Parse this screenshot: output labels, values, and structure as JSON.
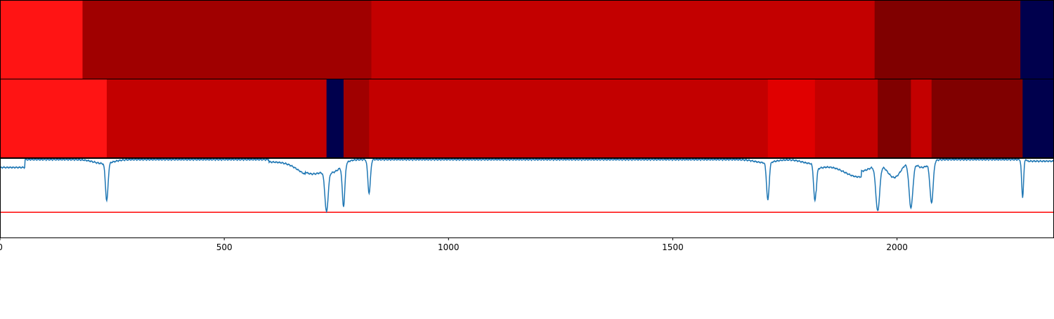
{
  "chart_data": {
    "type": "heatmap",
    "title": "",
    "xlabel": "",
    "ylabel": "",
    "xlim": [
      0,
      2350
    ],
    "x_ticks": [
      0,
      500,
      1000,
      1500,
      2000
    ],
    "x_tick_labels": [
      "0",
      "500",
      "1000",
      "1500",
      "2000"
    ],
    "grid": false,
    "segment_rows": [
      {
        "segments": [
          {
            "start": 0,
            "end": 184,
            "color": "#ff1414"
          },
          {
            "start": 184,
            "end": 828,
            "color": "#a00000"
          },
          {
            "start": 828,
            "end": 1950,
            "color": "#c30000"
          },
          {
            "start": 1950,
            "end": 2275,
            "color": "#800000"
          },
          {
            "start": 2275,
            "end": 2350,
            "color": "#00004d"
          }
        ]
      },
      {
        "segments": [
          {
            "start": 0,
            "end": 238,
            "color": "#ff1414"
          },
          {
            "start": 238,
            "end": 728,
            "color": "#c30000"
          },
          {
            "start": 728,
            "end": 766,
            "color": "#00004d"
          },
          {
            "start": 766,
            "end": 823,
            "color": "#a00000"
          },
          {
            "start": 823,
            "end": 1712,
            "color": "#c30000"
          },
          {
            "start": 1712,
            "end": 1817,
            "color": "#e00000"
          },
          {
            "start": 1817,
            "end": 1957,
            "color": "#c30000"
          },
          {
            "start": 1957,
            "end": 2031,
            "color": "#800000"
          },
          {
            "start": 2031,
            "end": 2077,
            "color": "#c30000"
          },
          {
            "start": 2077,
            "end": 2280,
            "color": "#800000"
          },
          {
            "start": 2280,
            "end": 2350,
            "color": "#00004d"
          }
        ]
      }
    ],
    "line_panel": {
      "ylim": [
        0,
        1
      ],
      "threshold": 0.32,
      "threshold_color": "#ff0000",
      "series_color": "#1f77b4",
      "baseline": 0.99,
      "dips": [
        {
          "x": 238,
          "depth": 0.48,
          "width": 4
        },
        {
          "x": 728,
          "depth": 0.5,
          "width": 5
        },
        {
          "x": 766,
          "depth": 0.53,
          "width": 4
        },
        {
          "x": 823,
          "depth": 0.43,
          "width": 4
        },
        {
          "x": 1712,
          "depth": 0.48,
          "width": 4
        },
        {
          "x": 1817,
          "depth": 0.48,
          "width": 4
        },
        {
          "x": 1957,
          "depth": 0.58,
          "width": 6
        },
        {
          "x": 2031,
          "depth": 0.58,
          "width": 6
        },
        {
          "x": 2077,
          "depth": 0.52,
          "width": 5
        },
        {
          "x": 2280,
          "depth": 0.48,
          "width": 3
        }
      ],
      "broad_dips": [
        {
          "x": 695,
          "depth": 0.18,
          "width": 40
        },
        {
          "x": 745,
          "depth": 0.12,
          "width": 25
        },
        {
          "x": 1915,
          "depth": 0.15,
          "width": 45
        },
        {
          "x": 1994,
          "depth": 0.22,
          "width": 22
        },
        {
          "x": 2056,
          "depth": 0.1,
          "width": 20
        },
        {
          "x": 230,
          "depth": 0.05,
          "width": 30
        },
        {
          "x": 1810,
          "depth": 0.05,
          "width": 30
        },
        {
          "x": 1705,
          "depth": 0.04,
          "width": 30
        }
      ],
      "shoulders": [
        {
          "start": 0,
          "end": 55,
          "value": 0.89
        },
        {
          "start": 600,
          "end": 680,
          "value": 0.96
        },
        {
          "start": 1820,
          "end": 1920,
          "value": 0.92
        },
        {
          "start": 2290,
          "end": 2350,
          "value": 0.97
        }
      ]
    }
  }
}
